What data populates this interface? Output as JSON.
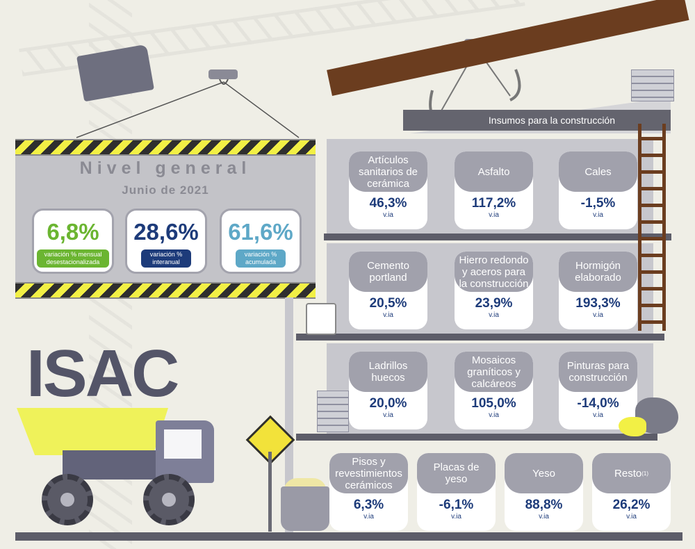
{
  "nivel_general": {
    "title": "Nivel general",
    "date": "Junio de 2021",
    "indicators": [
      {
        "value": "6,8%",
        "label_line1": "variación % mensual",
        "label_line2": "desestacionalizada",
        "color": "#6bb531"
      },
      {
        "value": "28,6%",
        "label_line1": "variación %",
        "label_line2": "interanual",
        "color": "#1d3b7a"
      },
      {
        "value": "61,6%",
        "label_line1": "variación %",
        "label_line2": "acumulada",
        "color": "#5ea8c7"
      }
    ]
  },
  "brand": "ISAC",
  "insumos": {
    "title": "Insumos para la construcción",
    "unit": "v.ia",
    "items": [
      {
        "name": "Artículos sanitarios de cerámica",
        "value": "46,3%"
      },
      {
        "name": "Asfalto",
        "value": "117,2%"
      },
      {
        "name": "Cales",
        "value": "-1,5%"
      },
      {
        "name": "Cemento portland",
        "value": "20,5%"
      },
      {
        "name": "Hierro redondo y aceros para la construcción",
        "value": "23,9%"
      },
      {
        "name": "Hormigón elaborado",
        "value": "193,3%"
      },
      {
        "name": "Ladrillos huecos",
        "value": "20,0%"
      },
      {
        "name": "Mosaicos graníticos y calcáreos",
        "value": "105,0%"
      },
      {
        "name": "Pinturas para construcción",
        "value": "-14,0%"
      },
      {
        "name": "Pisos y revestimientos cerámicos",
        "value": "6,3%"
      },
      {
        "name": "Placas de yeso",
        "value": "-6,1%"
      },
      {
        "name": "Yeso",
        "value": "88,8%"
      },
      {
        "name": "Resto",
        "note": "(1)",
        "value": "26,2%"
      }
    ]
  },
  "colors": {
    "card_header": "#a1a1ac",
    "value_text": "#1d3b7a",
    "hazard_yellow": "#f2f045",
    "roof": "#6b3d1f"
  }
}
